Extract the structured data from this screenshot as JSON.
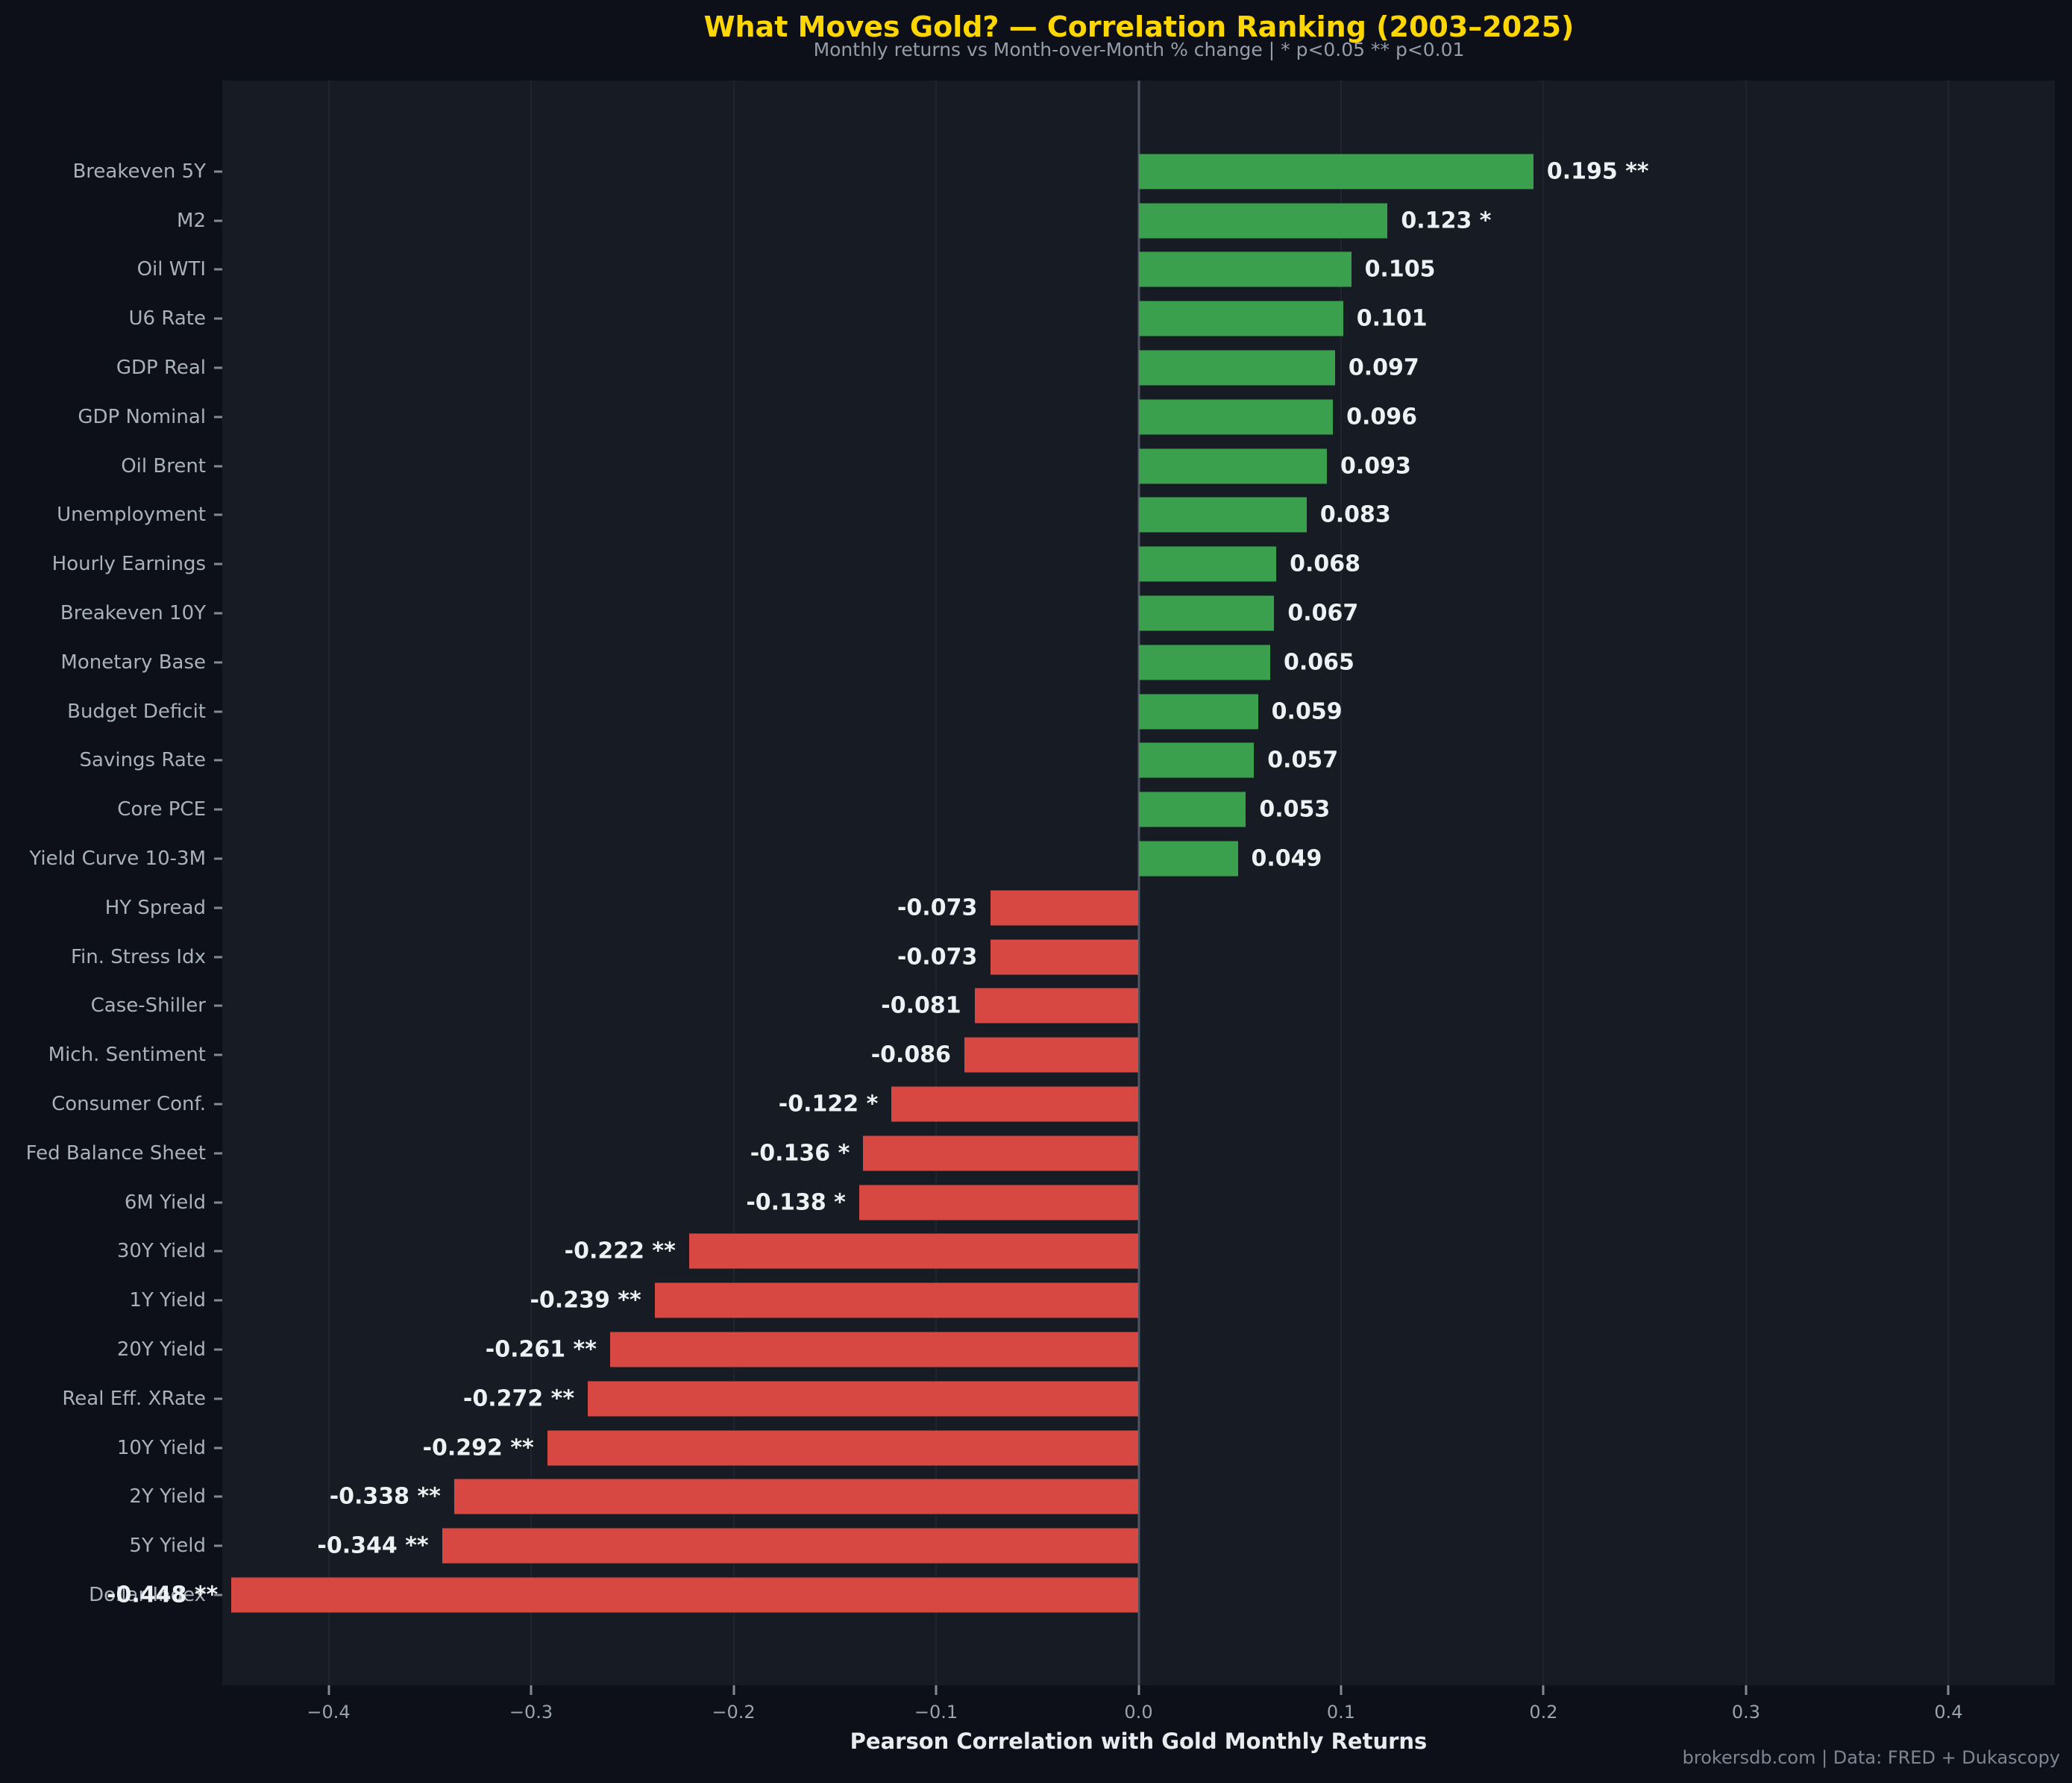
{
  "title": "What Moves Gold? — Correlation Ranking (2003–2025)",
  "subtitle": "Monthly returns vs Month-over-Month % change  |  * p<0.05  ** p<0.01",
  "xlabel": "Pearson Correlation with Gold Monthly Returns",
  "footer": "brokersdb.com  |  Data: FRED + Dukascopy",
  "colors": {
    "background": "#0d1018",
    "plot_background": "#171b24",
    "positive_bar": "#3aa04d",
    "negative_bar": "#d74842",
    "title": "#ffd700",
    "zero_line": "#4d5562",
    "category_label": "#a9b1bb",
    "value_label": "#eef1f4",
    "tick_label": "#9aa2ac"
  },
  "chart_data": {
    "type": "bar",
    "orientation": "horizontal",
    "title": "What Moves Gold? — Correlation Ranking (2003–2025)",
    "xlabel": "Pearson Correlation with Gold Monthly Returns",
    "ylabel": "",
    "grid": true,
    "legend": false,
    "xlim": [
      -0.4525,
      0.4525
    ],
    "xticks": [
      -0.4,
      -0.3,
      -0.2,
      -0.1,
      0.0,
      0.1,
      0.2,
      0.3,
      0.4
    ],
    "xtick_labels": [
      "−0.4",
      "−0.3",
      "−0.2",
      "−0.1",
      "0.0",
      "0.1",
      "0.2",
      "0.3",
      "0.4"
    ],
    "categories": [
      "Breakeven 5Y",
      "M2",
      "Oil WTI",
      "U6 Rate",
      "GDP Real",
      "GDP Nominal",
      "Oil Brent",
      "Unemployment",
      "Hourly Earnings",
      "Breakeven 10Y",
      "Monetary Base",
      "Budget Deficit",
      "Savings Rate",
      "Core PCE",
      "Yield Curve 10-3M",
      "HY Spread",
      "Fin. Stress Idx",
      "Case-Shiller",
      "Mich. Sentiment",
      "Consumer Conf.",
      "Fed Balance Sheet",
      "6M Yield",
      "30Y Yield",
      "1Y Yield",
      "20Y Yield",
      "Real Eff. XRate",
      "10Y Yield",
      "2Y Yield",
      "5Y Yield",
      "Dollar Index"
    ],
    "values": [
      0.195,
      0.123,
      0.105,
      0.101,
      0.097,
      0.096,
      0.093,
      0.083,
      0.068,
      0.067,
      0.065,
      0.059,
      0.057,
      0.053,
      0.049,
      -0.073,
      -0.073,
      -0.081,
      -0.086,
      -0.122,
      -0.136,
      -0.138,
      -0.222,
      -0.239,
      -0.261,
      -0.272,
      -0.292,
      -0.338,
      -0.344,
      -0.448
    ],
    "significance": [
      "**",
      "*",
      "",
      "",
      "",
      "",
      "",
      "",
      "",
      "",
      "",
      "",
      "",
      "",
      "",
      "",
      "",
      "",
      "",
      "*",
      "*",
      "*",
      "**",
      "**",
      "**",
      "**",
      "**",
      "**",
      "**",
      "**"
    ]
  }
}
